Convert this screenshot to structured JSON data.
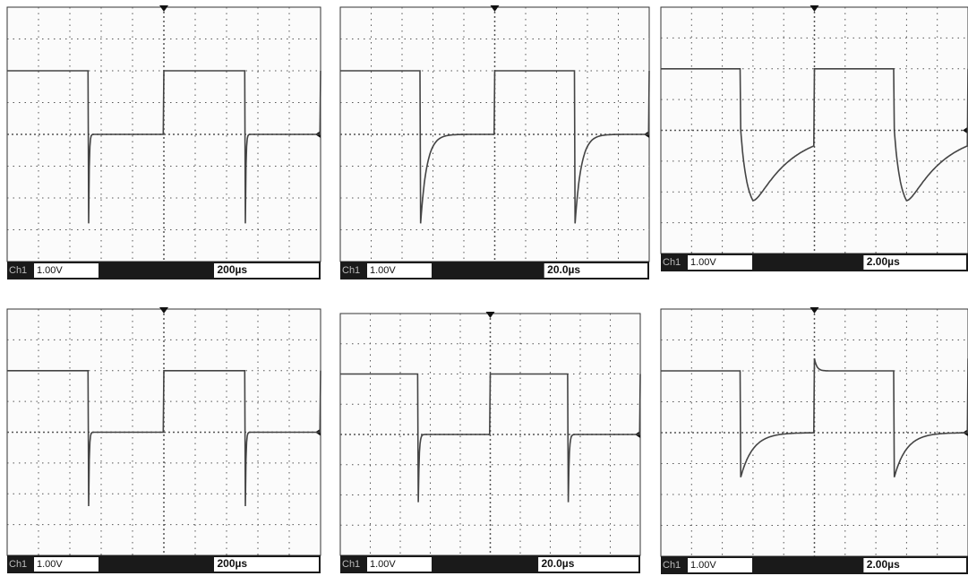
{
  "panels": [
    {
      "channel": "Ch1",
      "volts": "1.00V",
      "time": "200µs"
    },
    {
      "channel": "Ch1",
      "volts": "1.00V",
      "time": "20.0µs"
    },
    {
      "channel": "Ch1",
      "volts": "1.00V",
      "time": "2.00µs"
    },
    {
      "channel": "Ch1",
      "volts": "1.00V",
      "time": "200µs"
    },
    {
      "channel": "Ch1",
      "volts": "1.00V",
      "time": "20.0µs"
    },
    {
      "channel": "Ch1",
      "volts": "1.00V",
      "time": "2.00µs"
    }
  ]
}
